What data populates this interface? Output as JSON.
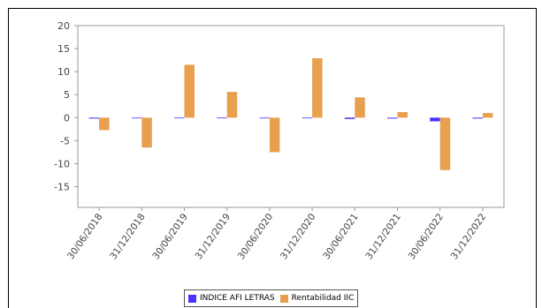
{
  "chart_data": {
    "type": "bar",
    "categories": [
      "30/06/2018",
      "31/12/2018",
      "30/06/2019",
      "31/12/2019",
      "30/06/2020",
      "31/12/2020",
      "30/06/2021",
      "31/12/2021",
      "30/06/2022",
      "31/12/2022"
    ],
    "series": [
      {
        "name": "INDICE AFI LETRAS",
        "color": "#4a33ff",
        "values": [
          -0.2,
          -0.1,
          -0.1,
          -0.1,
          -0.1,
          -0.1,
          -0.3,
          -0.2,
          -0.8,
          -0.2
        ]
      },
      {
        "name": "Rentabilidad IIC",
        "color": "#e8a04f",
        "values": [
          -2.7,
          -6.5,
          11.5,
          5.6,
          -7.5,
          12.9,
          4.4,
          1.2,
          -11.4,
          1.0
        ]
      }
    ],
    "yticks": [
      20,
      15,
      10,
      5,
      0,
      -5,
      -10,
      -15
    ],
    "ylim": [
      -19.5,
      20
    ],
    "grid": false,
    "legend_position": "bottom"
  }
}
